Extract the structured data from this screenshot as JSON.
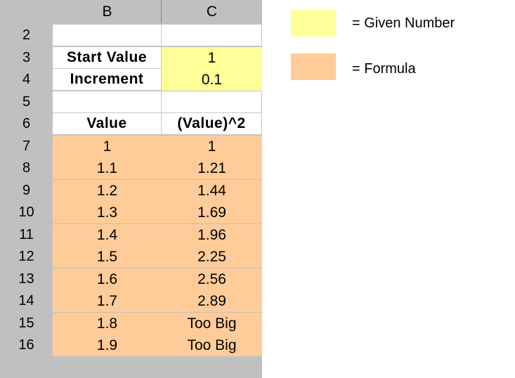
{
  "spreadsheet": {
    "columns": [
      "B",
      "C"
    ],
    "rows": [
      {
        "num": "2",
        "b": "",
        "c": "",
        "b_style": "white",
        "c_style": "white"
      },
      {
        "num": "3",
        "b": "Start Value",
        "c": "1",
        "b_style": "white bold",
        "c_style": "yellow"
      },
      {
        "num": "4",
        "b": "Increment",
        "c": "0.1",
        "b_style": "white bold",
        "c_style": "yellow"
      },
      {
        "num": "5",
        "b": "",
        "c": "",
        "b_style": "white",
        "c_style": "white"
      },
      {
        "num": "6",
        "b": "Value",
        "c": "(Value)^2",
        "b_style": "white bold",
        "c_style": "white bold"
      },
      {
        "num": "7",
        "b": "1",
        "c": "1",
        "b_style": "orange",
        "c_style": "orange"
      },
      {
        "num": "8",
        "b": "1.1",
        "c": "1.21",
        "b_style": "orange",
        "c_style": "orange"
      },
      {
        "num": "9",
        "b": "1.2",
        "c": "1.44",
        "b_style": "orange",
        "c_style": "orange"
      },
      {
        "num": "10",
        "b": "1.3",
        "c": "1.69",
        "b_style": "orange",
        "c_style": "orange"
      },
      {
        "num": "11",
        "b": "1.4",
        "c": "1.96",
        "b_style": "orange",
        "c_style": "orange"
      },
      {
        "num": "12",
        "b": "1.5",
        "c": "2.25",
        "b_style": "orange",
        "c_style": "orange"
      },
      {
        "num": "13",
        "b": "1.6",
        "c": "2.56",
        "b_style": "orange",
        "c_style": "orange"
      },
      {
        "num": "14",
        "b": "1.7",
        "c": "2.89",
        "b_style": "orange",
        "c_style": "orange"
      },
      {
        "num": "15",
        "b": "1.8",
        "c": "Too Big",
        "b_style": "orange",
        "c_style": "orange"
      },
      {
        "num": "16",
        "b": "1.9",
        "c": "Too Big",
        "b_style": "orange",
        "c_style": "orange"
      }
    ]
  },
  "legend": {
    "given_label": "= Given Number",
    "formula_label": "= Formula",
    "given_color": "#ffff99",
    "formula_color": "#ffcc99"
  }
}
